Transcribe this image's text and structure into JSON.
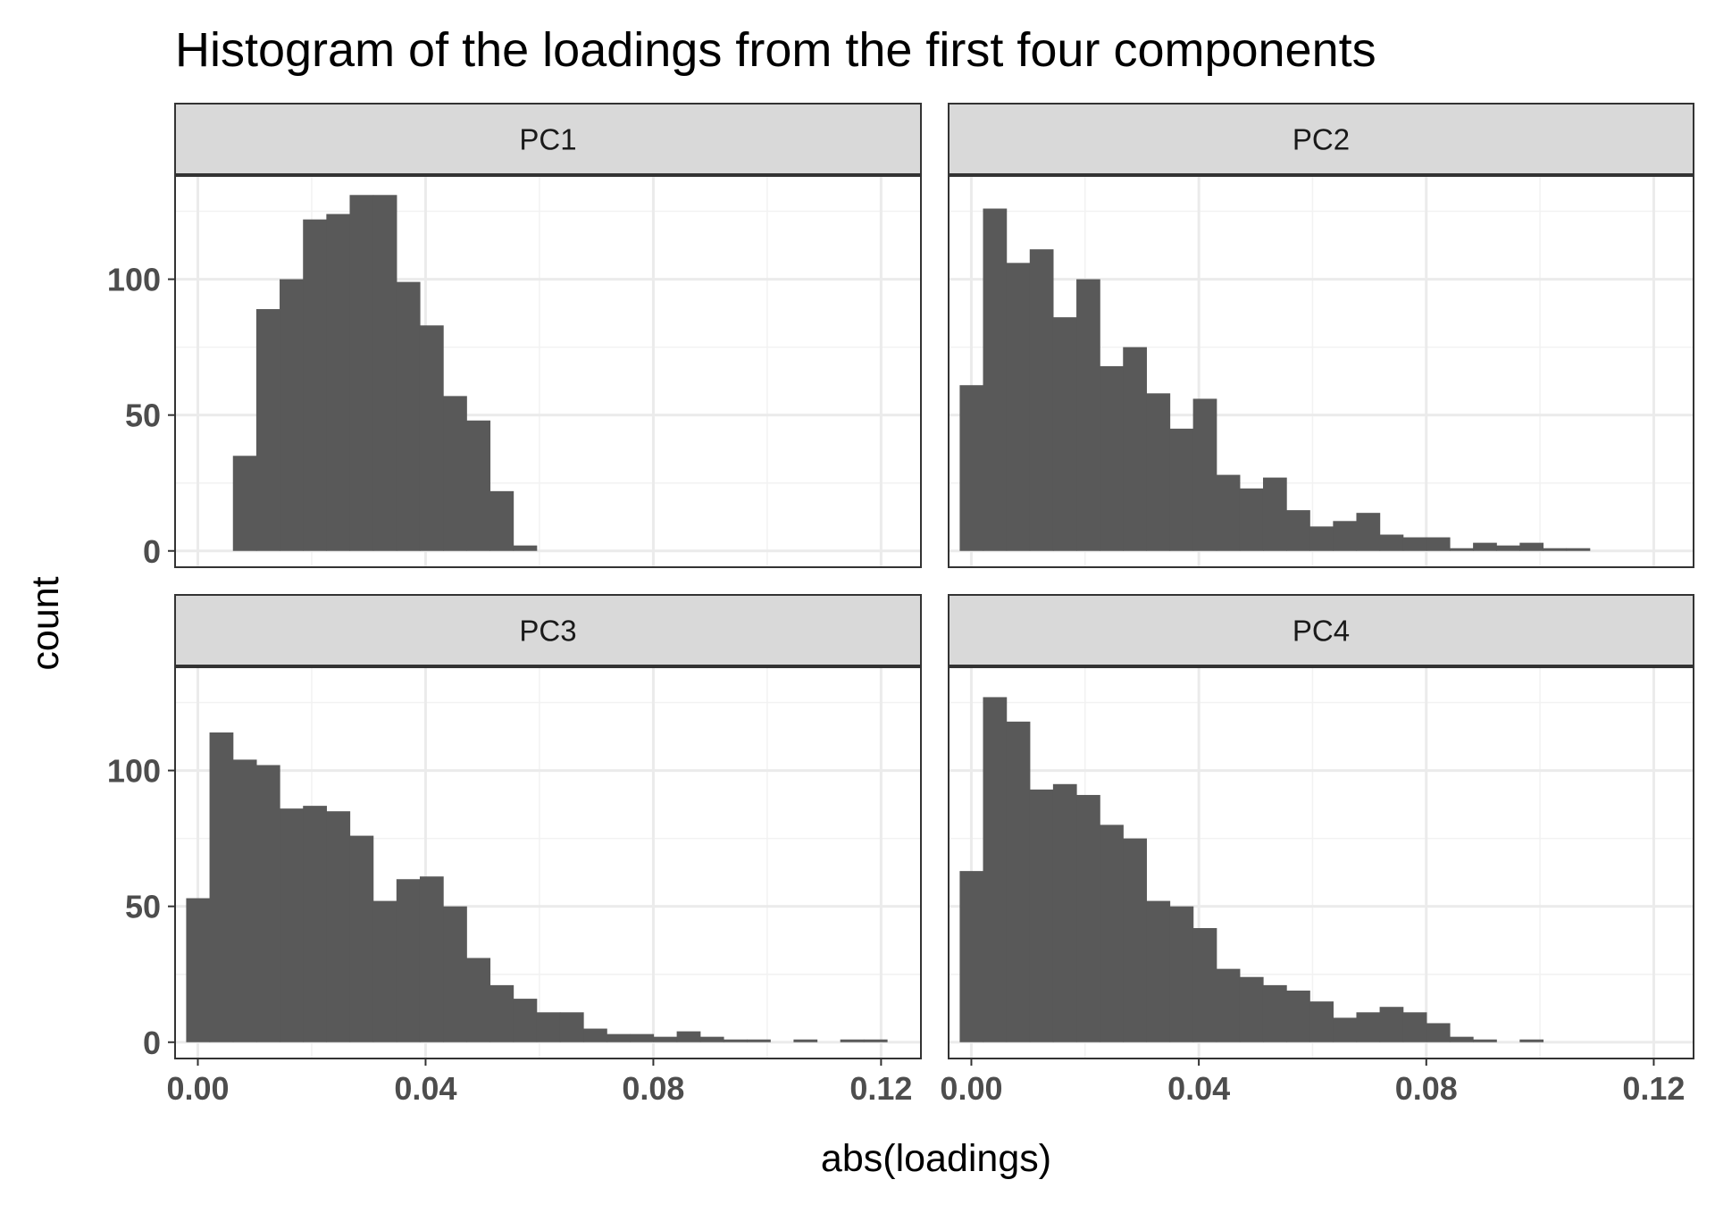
{
  "chart_data": {
    "type": "bar",
    "title": "Histogram of the loadings from the first four components",
    "xlabel": "abs(loadings)",
    "ylabel": "count",
    "xlim": [
      -0.004,
      0.127
    ],
    "ylim": [
      -6,
      138
    ],
    "x_ticks": [
      0.0,
      0.04,
      0.08,
      0.12
    ],
    "x_tick_labels": [
      "0.00",
      "0.04",
      "0.08",
      "0.12"
    ],
    "y_ticks": [
      0,
      50,
      100
    ],
    "y_tick_labels": [
      "0",
      "50",
      "100"
    ],
    "grid": true,
    "bin_width": 0.004103,
    "bin_start": -0.00205,
    "facets": [
      {
        "name": "PC1",
        "bins": [
          {
            "x_start": 0.00616,
            "count": 35
          },
          {
            "x_start": 0.01026,
            "count": 89
          },
          {
            "x_start": 0.01436,
            "count": 100
          },
          {
            "x_start": 0.01847,
            "count": 122
          },
          {
            "x_start": 0.02257,
            "count": 124
          },
          {
            "x_start": 0.02667,
            "count": 131
          },
          {
            "x_start": 0.03078,
            "count": 131
          },
          {
            "x_start": 0.03488,
            "count": 99
          },
          {
            "x_start": 0.03898,
            "count": 83
          },
          {
            "x_start": 0.04308,
            "count": 57
          },
          {
            "x_start": 0.04719,
            "count": 48
          },
          {
            "x_start": 0.05129,
            "count": 22
          },
          {
            "x_start": 0.05539,
            "count": 2
          }
        ]
      },
      {
        "name": "PC2",
        "bins": [
          {
            "x_start": -0.00205,
            "count": 61
          },
          {
            "x_start": 0.00205,
            "count": 126
          },
          {
            "x_start": 0.00616,
            "count": 106
          },
          {
            "x_start": 0.01026,
            "count": 111
          },
          {
            "x_start": 0.01436,
            "count": 86
          },
          {
            "x_start": 0.01847,
            "count": 100
          },
          {
            "x_start": 0.02257,
            "count": 68
          },
          {
            "x_start": 0.02667,
            "count": 75
          },
          {
            "x_start": 0.03078,
            "count": 58
          },
          {
            "x_start": 0.03488,
            "count": 45
          },
          {
            "x_start": 0.03898,
            "count": 56
          },
          {
            "x_start": 0.04308,
            "count": 28
          },
          {
            "x_start": 0.04719,
            "count": 23
          },
          {
            "x_start": 0.05129,
            "count": 27
          },
          {
            "x_start": 0.05539,
            "count": 15
          },
          {
            "x_start": 0.0595,
            "count": 9
          },
          {
            "x_start": 0.0636,
            "count": 11
          },
          {
            "x_start": 0.0677,
            "count": 14
          },
          {
            "x_start": 0.0718,
            "count": 6
          },
          {
            "x_start": 0.07591,
            "count": 5
          },
          {
            "x_start": 0.08001,
            "count": 5
          },
          {
            "x_start": 0.08411,
            "count": 1
          },
          {
            "x_start": 0.08822,
            "count": 3
          },
          {
            "x_start": 0.09232,
            "count": 2
          },
          {
            "x_start": 0.09642,
            "count": 3
          },
          {
            "x_start": 0.10052,
            "count": 1
          },
          {
            "x_start": 0.10463,
            "count": 1
          }
        ]
      },
      {
        "name": "PC3",
        "bins": [
          {
            "x_start": -0.00205,
            "count": 53
          },
          {
            "x_start": 0.00205,
            "count": 114
          },
          {
            "x_start": 0.00616,
            "count": 104
          },
          {
            "x_start": 0.01026,
            "count": 102
          },
          {
            "x_start": 0.01436,
            "count": 86
          },
          {
            "x_start": 0.01847,
            "count": 87
          },
          {
            "x_start": 0.02257,
            "count": 85
          },
          {
            "x_start": 0.02667,
            "count": 76
          },
          {
            "x_start": 0.03078,
            "count": 52
          },
          {
            "x_start": 0.03488,
            "count": 60
          },
          {
            "x_start": 0.03898,
            "count": 61
          },
          {
            "x_start": 0.04308,
            "count": 50
          },
          {
            "x_start": 0.04719,
            "count": 31
          },
          {
            "x_start": 0.05129,
            "count": 21
          },
          {
            "x_start": 0.05539,
            "count": 16
          },
          {
            "x_start": 0.0595,
            "count": 11
          },
          {
            "x_start": 0.0636,
            "count": 11
          },
          {
            "x_start": 0.0677,
            "count": 5
          },
          {
            "x_start": 0.0718,
            "count": 3
          },
          {
            "x_start": 0.07591,
            "count": 3
          },
          {
            "x_start": 0.08001,
            "count": 2
          },
          {
            "x_start": 0.08411,
            "count": 4
          },
          {
            "x_start": 0.08822,
            "count": 2
          },
          {
            "x_start": 0.09232,
            "count": 1
          },
          {
            "x_start": 0.09642,
            "count": 1
          },
          {
            "x_start": 0.10463,
            "count": 1
          },
          {
            "x_start": 0.11283,
            "count": 1
          },
          {
            "x_start": 0.11694,
            "count": 1
          }
        ]
      },
      {
        "name": "PC4",
        "bins": [
          {
            "x_start": -0.00205,
            "count": 63
          },
          {
            "x_start": 0.00205,
            "count": 127
          },
          {
            "x_start": 0.00616,
            "count": 118
          },
          {
            "x_start": 0.01026,
            "count": 93
          },
          {
            "x_start": 0.01436,
            "count": 95
          },
          {
            "x_start": 0.01847,
            "count": 91
          },
          {
            "x_start": 0.02257,
            "count": 80
          },
          {
            "x_start": 0.02667,
            "count": 75
          },
          {
            "x_start": 0.03078,
            "count": 52
          },
          {
            "x_start": 0.03488,
            "count": 50
          },
          {
            "x_start": 0.03898,
            "count": 42
          },
          {
            "x_start": 0.04308,
            "count": 27
          },
          {
            "x_start": 0.04719,
            "count": 24
          },
          {
            "x_start": 0.05129,
            "count": 21
          },
          {
            "x_start": 0.05539,
            "count": 19
          },
          {
            "x_start": 0.0595,
            "count": 15
          },
          {
            "x_start": 0.0636,
            "count": 9
          },
          {
            "x_start": 0.0677,
            "count": 11
          },
          {
            "x_start": 0.0718,
            "count": 13
          },
          {
            "x_start": 0.07591,
            "count": 11
          },
          {
            "x_start": 0.08001,
            "count": 7
          },
          {
            "x_start": 0.08411,
            "count": 2
          },
          {
            "x_start": 0.08822,
            "count": 1
          },
          {
            "x_start": 0.09642,
            "count": 1
          }
        ]
      }
    ]
  },
  "colors": {
    "bar_fill": "#595959",
    "panel_background": "#ffffff",
    "panel_border": "#333333",
    "strip_background": "#d9d9d9",
    "strip_border": "#333333",
    "grid_major": "#ebebeb",
    "grid_minor": "#f2f2f2",
    "tick_label": "#4d4d4d",
    "tick_mark": "#333333",
    "title_text": "#000000",
    "strip_text": "#1a1a1a"
  }
}
